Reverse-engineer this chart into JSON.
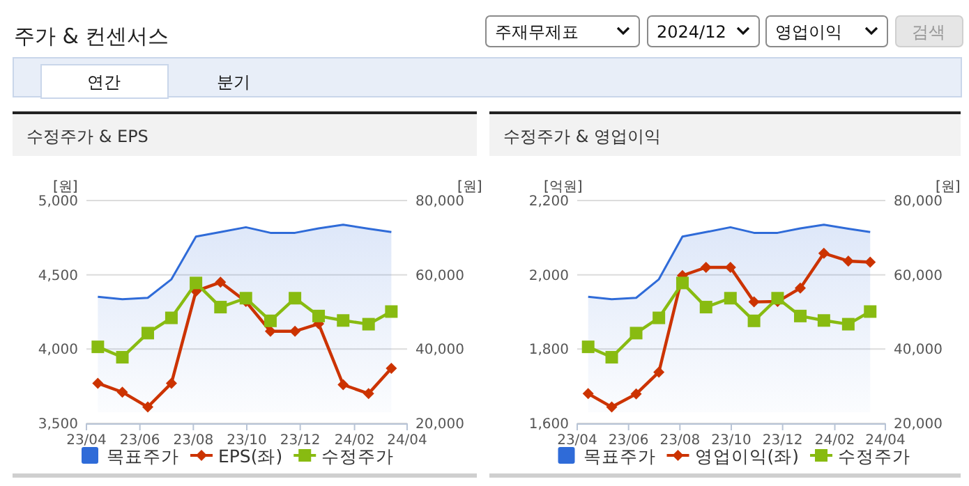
{
  "chart_data": [
    {
      "type": "other",
      "title": "주가 & 컨센서스",
      "annotations": [
        "주재무제표",
        "2024/12",
        "영업이익",
        "검색",
        "연간",
        "분기"
      ]
    },
    {
      "type": "line",
      "title": "수정주가 & EPS",
      "ylabel": "[원]",
      "y2label": "[원]",
      "x": [
        "2023-04-14",
        "2023-05-12",
        "2023-06-10",
        "2023-07-07",
        "2023-08-04",
        "2023-09-01",
        "2023-09-30",
        "2023-10-28",
        "2023-11-25",
        "2023-12-22",
        "2024-01-19",
        "2024-02-17",
        "2024-03-14"
      ],
      "xlim": [
        "2023-04-01",
        "2024-04-01"
      ],
      "xticks": [
        {
          "value": "2023-04-01",
          "label": "23/04"
        },
        {
          "value": "2023-06-01",
          "label": "23/06"
        },
        {
          "value": "2023-08-01",
          "label": "23/08"
        },
        {
          "value": "2023-10-01",
          "label": "23/10"
        },
        {
          "value": "2023-12-01",
          "label": "23/12"
        },
        {
          "value": "2024-02-01",
          "label": "24/02"
        },
        {
          "value": "2024-04-01",
          "label": "24/04"
        }
      ],
      "ylim": [
        3500,
        5000
      ],
      "yticks": [
        {
          "value": 3500,
          "label": "3,500"
        },
        {
          "value": 4000,
          "label": "4,000"
        },
        {
          "value": 4500,
          "label": "4,500"
        },
        {
          "value": 5000,
          "label": "5,000"
        }
      ],
      "y2lim": [
        20000,
        80000
      ],
      "y2ticks": [
        {
          "value": 20000,
          "label": "20,000"
        },
        {
          "value": 40000,
          "label": "40,000"
        },
        {
          "value": 60000,
          "label": "60,000"
        },
        {
          "value": 80000,
          "label": "80,000"
        }
      ],
      "grid": "y",
      "legend": "bottom",
      "series": [
        {
          "name": "목표주가",
          "type": "area",
          "axis": "y2",
          "color": "#2f6bd8",
          "values": [
            54100,
            53400,
            53800,
            58800,
            70300,
            71500,
            72800,
            71300,
            71300,
            72500,
            73500,
            72400,
            71500
          ]
        },
        {
          "name": "EPS(좌)",
          "type": "line",
          "marker": "diamond",
          "color": "#cc3300",
          "values": [
            3770,
            3710,
            3610,
            3770,
            4390,
            4450,
            4320,
            4120,
            4120,
            4170,
            3760,
            3700,
            3870
          ]
        },
        {
          "name": "수정주가",
          "type": "line",
          "axis": "y2",
          "marker": "square",
          "color": "#88bb11",
          "values": [
            40600,
            37800,
            44300,
            48400,
            57800,
            51300,
            53700,
            47600,
            53700,
            48900,
            47700,
            46700,
            50100
          ]
        }
      ]
    },
    {
      "type": "line",
      "title": "수정주가 & 영업이익",
      "ylabel": "[억원]",
      "y2label": "[원]",
      "x": [
        "2023-04-14",
        "2023-05-12",
        "2023-06-10",
        "2023-07-07",
        "2023-08-04",
        "2023-09-01",
        "2023-09-30",
        "2023-10-28",
        "2023-11-25",
        "2023-12-22",
        "2024-01-19",
        "2024-02-17",
        "2024-03-14"
      ],
      "xlim": [
        "2023-04-01",
        "2024-04-01"
      ],
      "xticks": [
        {
          "value": "2023-04-01",
          "label": "23/04"
        },
        {
          "value": "2023-06-01",
          "label": "23/06"
        },
        {
          "value": "2023-08-01",
          "label": "23/08"
        },
        {
          "value": "2023-10-01",
          "label": "23/10"
        },
        {
          "value": "2023-12-01",
          "label": "23/12"
        },
        {
          "value": "2024-02-01",
          "label": "24/02"
        },
        {
          "value": "2024-04-01",
          "label": "24/04"
        }
      ],
      "ylim": [
        1600,
        2200
      ],
      "yticks": [
        {
          "value": 1600,
          "label": "1,600"
        },
        {
          "value": 1800,
          "label": "1,800"
        },
        {
          "value": 2000,
          "label": "2,000"
        },
        {
          "value": 2200,
          "label": "2,200"
        }
      ],
      "y2lim": [
        20000,
        80000
      ],
      "y2ticks": [
        {
          "value": 20000,
          "label": "20,000"
        },
        {
          "value": 40000,
          "label": "40,000"
        },
        {
          "value": 60000,
          "label": "60,000"
        },
        {
          "value": 80000,
          "label": "80,000"
        }
      ],
      "grid": "y",
      "legend": "bottom",
      "series": [
        {
          "name": "목표주가",
          "type": "area",
          "axis": "y2",
          "color": "#2f6bd8",
          "values": [
            54100,
            53400,
            53800,
            58800,
            70300,
            71500,
            72800,
            71300,
            71300,
            72500,
            73500,
            72400,
            71500
          ]
        },
        {
          "name": "영업이익(좌)",
          "type": "line",
          "marker": "diamond",
          "color": "#cc3300",
          "values": [
            1680,
            1644,
            1679,
            1738,
            1998,
            2020,
            2020,
            1927,
            1928,
            1964,
            2058,
            2037,
            2034
          ]
        },
        {
          "name": "수정주가",
          "type": "line",
          "axis": "y2",
          "marker": "square",
          "color": "#88bb11",
          "values": [
            40600,
            37800,
            44300,
            48400,
            57800,
            51300,
            53700,
            47600,
            53700,
            48900,
            47700,
            46700,
            50100
          ]
        }
      ]
    }
  ]
}
